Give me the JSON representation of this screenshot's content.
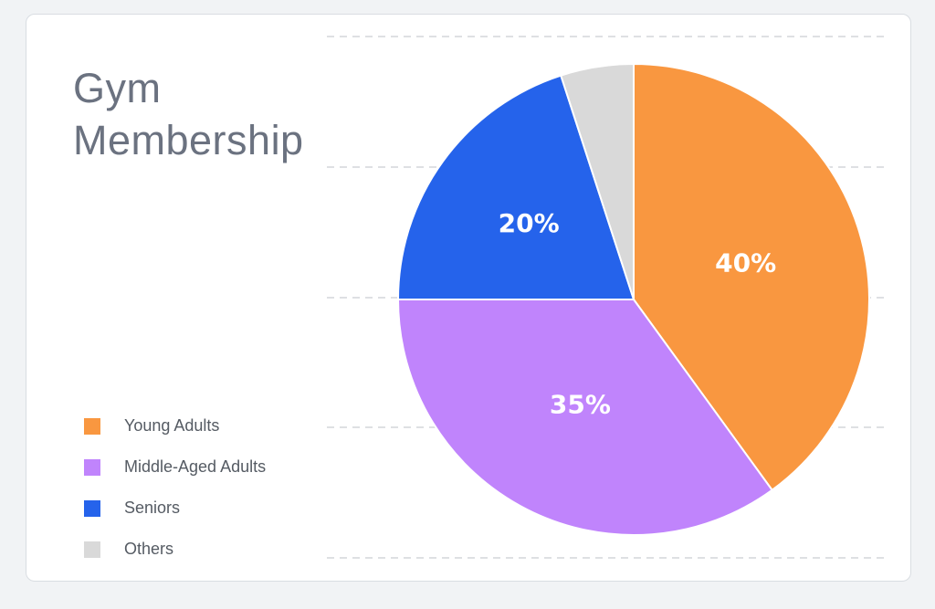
{
  "chart_data": {
    "type": "pie",
    "title_lines": [
      "Gym",
      "Membership"
    ],
    "categories": [
      "Young Adults",
      "Middle-Aged Adults",
      "Seniors",
      "Others"
    ],
    "values": [
      40,
      35,
      20,
      5
    ],
    "data_labels": [
      "40%",
      "35%",
      "20%",
      ""
    ],
    "colors": [
      "#f99740",
      "#c084fc",
      "#2563eb",
      "#d9d9d9"
    ],
    "legend_position": "bottom-left",
    "grid": true
  }
}
